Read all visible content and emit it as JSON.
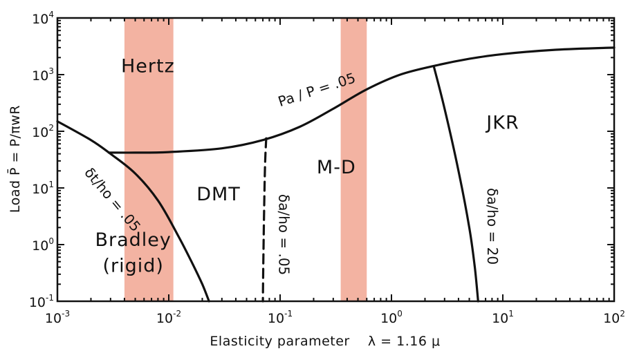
{
  "chart_data": {
    "type": "line",
    "title": "",
    "xlabel": "Elasticity parameter    λ = 1.16 μ",
    "ylabel": "Load  P̄ = P/πwR",
    "xscale": "log",
    "yscale": "log",
    "xlim": [
      0.001,
      100
    ],
    "ylim": [
      0.1,
      10000
    ],
    "grid": false,
    "legend": "none",
    "x_ticks": [
      {
        "base": "10",
        "exp": "-3",
        "value": 0.001
      },
      {
        "base": "10",
        "exp": "-2",
        "value": 0.01
      },
      {
        "base": "10",
        "exp": "-1",
        "value": 0.1
      },
      {
        "base": "10",
        "exp": "0",
        "value": 1
      },
      {
        "base": "10",
        "exp": "1",
        "value": 10
      },
      {
        "base": "10",
        "exp": "2",
        "value": 100
      }
    ],
    "y_ticks": [
      {
        "base": "10",
        "exp": "-1",
        "value": 0.1
      },
      {
        "base": "10",
        "exp": "0",
        "value": 1
      },
      {
        "base": "10",
        "exp": "1",
        "value": 10
      },
      {
        "base": "10",
        "exp": "2",
        "value": 100
      },
      {
        "base": "10",
        "exp": "3",
        "value": 1000
      },
      {
        "base": "10",
        "exp": "4",
        "value": 10000
      }
    ],
    "shaded_bands": [
      {
        "label": "Hertz",
        "x_range": [
          0.004,
          0.011
        ],
        "color": "#f3b3a2"
      },
      {
        "label": "M-D",
        "x_range": [
          0.35,
          0.6
        ],
        "color": "#f3b3a2"
      }
    ],
    "region_labels": [
      {
        "text": "Hertz",
        "x": 0.0065,
        "y": 1100
      },
      {
        "text": "JKR",
        "x": 10,
        "y": 110
      },
      {
        "text": "M-D",
        "x": 0.32,
        "y": 18
      },
      {
        "text": "DMT",
        "x": 0.028,
        "y": 6
      },
      {
        "text": "Bradley",
        "x": 0.0048,
        "y": 0.95
      },
      {
        "text": "(rigid)",
        "x": 0.0048,
        "y": 0.33
      }
    ],
    "curve_labels": [
      {
        "text": "Pa / P = .05",
        "x": 0.22,
        "y": 450,
        "rotate": -18
      },
      {
        "text": "δt/ho = .05",
        "x": 0.0029,
        "y": 5.5,
        "rotate": 50
      },
      {
        "text": "δa/ho = .05",
        "x": 0.098,
        "y": 1.5,
        "rotate": 90
      },
      {
        "text": "δa/ho = 20",
        "x": 7.3,
        "y": 2.1,
        "rotate": 90
      }
    ],
    "series": [
      {
        "style": "solid",
        "x": [
          0.0029,
          0.005,
          0.01,
          0.03,
          0.07,
          0.15,
          0.3,
          0.6,
          1.2,
          2.5,
          5,
          10,
          30,
          100
        ],
        "y": [
          42,
          42,
          43,
          50,
          70,
          120,
          250,
          550,
          1000,
          1450,
          1900,
          2300,
          2750,
          3000
        ]
      },
      {
        "style": "solid",
        "x": [
          0.001,
          0.002,
          0.003,
          0.005,
          0.008,
          0.012,
          0.016,
          0.02,
          0.023
        ],
        "y": [
          150,
          70,
          40,
          18,
          6,
          1.5,
          0.5,
          0.2,
          0.1
        ]
      },
      {
        "style": "dashed",
        "x": [
          0.075,
          0.073,
          0.071,
          0.07
        ],
        "y": [
          75,
          20,
          1,
          0.1
        ]
      },
      {
        "style": "solid",
        "x": [
          2.4,
          3,
          4,
          5,
          5.6,
          6
        ],
        "y": [
          1400,
          250,
          20,
          2,
          0.4,
          0.1
        ]
      }
    ]
  }
}
